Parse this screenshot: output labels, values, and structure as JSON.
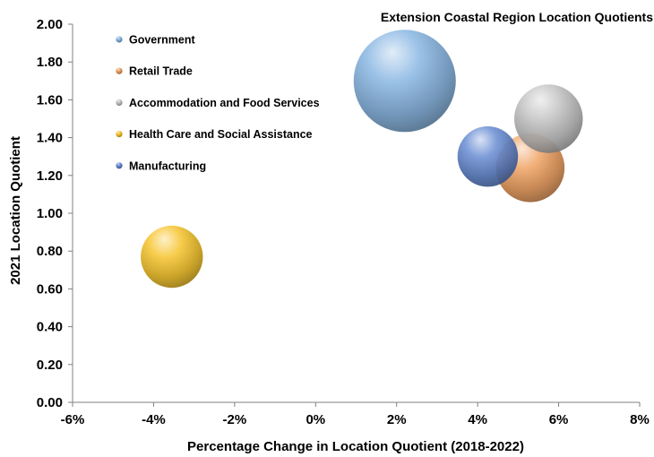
{
  "chart_data": {
    "type": "bubble",
    "title": "Extension Coastal Region Location Quotients",
    "xlabel": "Percentage Change in Location Quotient (2018-2022)",
    "ylabel": "2021 Location Quotient",
    "xlim": [
      -6,
      8
    ],
    "ylim": [
      0,
      2
    ],
    "x_ticks": [
      "-6%",
      "-4%",
      "-2%",
      "0%",
      "2%",
      "4%",
      "6%",
      "8%"
    ],
    "y_ticks": [
      "0.00",
      "0.20",
      "0.40",
      "0.60",
      "0.80",
      "1.00",
      "1.20",
      "1.40",
      "1.60",
      "1.80",
      "2.00"
    ],
    "grid": false,
    "legend_position": "top-left",
    "series": [
      {
        "name": "Government",
        "x": 2.2,
        "y": 1.7,
        "size": 100,
        "color": "#7fb0e0"
      },
      {
        "name": "Retail Trade",
        "x": 5.3,
        "y": 1.24,
        "size": 45,
        "color": "#ee9a55"
      },
      {
        "name": "Accommodation and Food Services",
        "x": 5.75,
        "y": 1.5,
        "size": 45,
        "color": "#c0c0c0"
      },
      {
        "name": "Health Care and Social Assistance",
        "x": -3.55,
        "y": 0.77,
        "size": 37,
        "color": "#f5c01c"
      },
      {
        "name": "Manufacturing",
        "x": 4.25,
        "y": 1.3,
        "size": 35,
        "color": "#5b82cf"
      }
    ]
  }
}
